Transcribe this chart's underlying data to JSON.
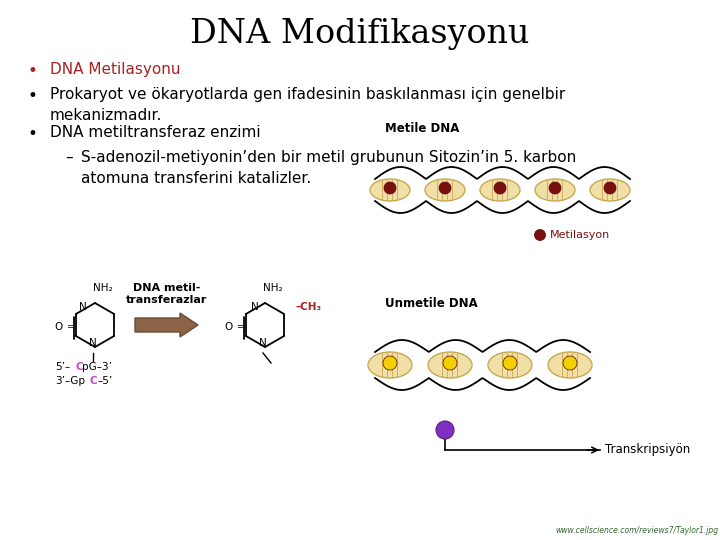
{
  "title": "DNA Modifikasyonu",
  "title_fontsize": 24,
  "background_color": "#ffffff",
  "text_color": "#000000",
  "red_color": "#aa2222",
  "pink_color": "#cc44cc",
  "brown_color": "#8B6347",
  "dark_red": "#7a1a1a",
  "url_text": "www.cellscience.com/reviews7/Taylor1.jpg",
  "url_color": "#336633",
  "url_fontsize": 5.5,
  "bullet1_text": "DNA Metilasyonu",
  "bullet1_color": "#aa2222",
  "bullet2_text": "Prokaryot ve ökaryotlarda gen ifadesinin baskılanması için genelbir\nmekanizmadır.",
  "bullet3_text": "DNA metiltransferaz enzimi",
  "bullet4_text": "S-adenozil-metiyonin’den bir metil grubunun Sitozin’in 5. karbon\natomuna transferini katalizler.",
  "label_arrow": "DNA metil-\ntransferazlar",
  "label_metile": "Metile DNA",
  "label_unmetile": "Unmetile DNA",
  "label_metilasyon": "Metilasyon",
  "label_transkrip": "Transkripsiyön",
  "seq1": [
    "5’–",
    "C",
    "pG–3’"
  ],
  "seq2": [
    "3’–Gp",
    "C",
    "–5’"
  ],
  "fontsz_bullet": 11,
  "fontsz_diagram": 7.5,
  "fontsz_label": 8.5
}
